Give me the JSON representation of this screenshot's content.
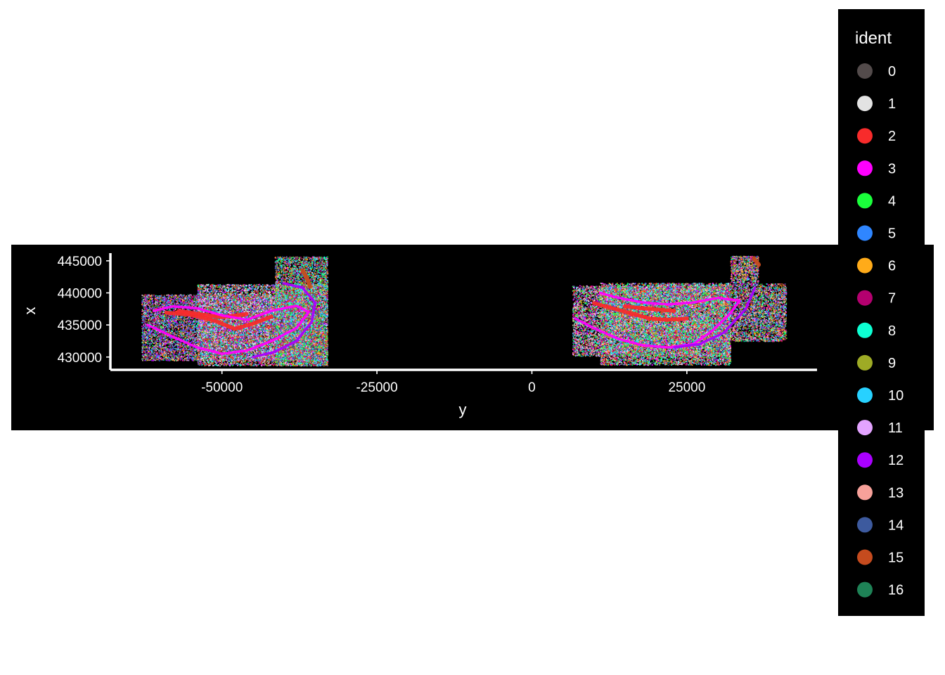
{
  "chart_data": {
    "type": "scatter",
    "title": "",
    "xlabel": "y",
    "ylabel": "x",
    "x_ticks": [
      -50000,
      -25000,
      0,
      25000
    ],
    "y_ticks": [
      430000,
      435000,
      440000,
      445000
    ],
    "x_tick_labels": [
      "-50000",
      "-25000",
      "0",
      "25000"
    ],
    "y_tick_labels": [
      "430000",
      "435000",
      "440000",
      "445000"
    ],
    "xlim": [
      -68000,
      46000
    ],
    "ylim": [
      428000,
      446200
    ],
    "grid": false,
    "background": "#000000",
    "foreground": "#ffffff",
    "legend": {
      "title": "ident",
      "position": "right",
      "entries": [
        {
          "label": "0",
          "color": "#534B4B"
        },
        {
          "label": "1",
          "color": "#E3E3E3"
        },
        {
          "label": "2",
          "color": "#F82B2B"
        },
        {
          "label": "3",
          "color": "#FF00FF"
        },
        {
          "label": "4",
          "color": "#1AFF3B"
        },
        {
          "label": "5",
          "color": "#2F86FF"
        },
        {
          "label": "6",
          "color": "#FFAB19"
        },
        {
          "label": "7",
          "color": "#B4006F"
        },
        {
          "label": "8",
          "color": "#0DFFD3"
        },
        {
          "label": "9",
          "color": "#9EAB25"
        },
        {
          "label": "10",
          "color": "#27D1FF"
        },
        {
          "label": "11",
          "color": "#E3A3FF"
        },
        {
          "label": "12",
          "color": "#AA00FF"
        },
        {
          "label": "13",
          "color": "#F7A19A"
        },
        {
          "label": "14",
          "color": "#3D5A9E"
        },
        {
          "label": "15",
          "color": "#C54B1E"
        },
        {
          "label": "16",
          "color": "#1E8256"
        }
      ]
    },
    "tissue_sections": [
      {
        "regions": [
          {
            "y": [
              -63000,
              -36000
            ],
            "x": [
              429500,
              439800
            ]
          },
          {
            "y": [
              -54000,
              -33000
            ],
            "x": [
              428700,
              441400
            ]
          },
          {
            "y": [
              -41500,
              -33000
            ],
            "x": [
              428700,
              445700
            ]
          }
        ],
        "bands": [
          {
            "cluster": "2",
            "points": [
              [
                -59000,
                436900
              ],
              [
                -55000,
                436600
              ],
              [
                -51000,
                435600
              ],
              [
                -48000,
                434400
              ],
              [
                -45000,
                435200
              ],
              [
                -42000,
                436300
              ]
            ]
          },
          {
            "cluster": "2",
            "points": [
              [
                -57000,
                437200
              ],
              [
                -53000,
                436600
              ],
              [
                -50000,
                436200
              ],
              [
                -46000,
                436700
              ]
            ]
          },
          {
            "cluster": "3",
            "points": [
              [
                -62000,
                435000
              ],
              [
                -58000,
                433200
              ],
              [
                -54000,
                431500
              ],
              [
                -50000,
                430500
              ],
              [
                -46000,
                431000
              ],
              [
                -42000,
                432500
              ],
              [
                -38000,
                434500
              ],
              [
                -36000,
                437000
              ],
              [
                -38000,
                438000
              ],
              [
                -42000,
                437200
              ],
              [
                -46000,
                435800
              ],
              [
                -50000,
                436500
              ],
              [
                -54000,
                437600
              ],
              [
                -58000,
                437900
              ],
              [
                -61000,
                437200
              ]
            ]
          },
          {
            "cluster": "12",
            "points": [
              [
                -40000,
                441500
              ],
              [
                -37000,
                440800
              ],
              [
                -35000,
                438500
              ],
              [
                -35500,
                435500
              ],
              [
                -38000,
                432500
              ],
              [
                -41500,
                430800
              ],
              [
                -45000,
                430000
              ]
            ]
          },
          {
            "cluster": "15",
            "points": [
              [
                -37000,
                443500
              ],
              [
                -36300,
                442300
              ],
              [
                -35800,
                441000
              ]
            ]
          }
        ]
      },
      {
        "regions": [
          {
            "y": [
              6500,
              32000
            ],
            "x": [
              430200,
              441200
            ]
          },
          {
            "y": [
              11000,
              32000
            ],
            "x": [
              428800,
              441600
            ]
          },
          {
            "y": [
              32000,
              41000
            ],
            "x": [
              432500,
              441500
            ]
          },
          {
            "y": [
              32000,
              36500
            ],
            "x": [
              441500,
              445800
            ]
          }
        ],
        "bands": [
          {
            "cluster": "2",
            "points": [
              [
                10000,
                438400
              ],
              [
                13000,
                437600
              ],
              [
                16000,
                436800
              ],
              [
                19000,
                436000
              ],
              [
                22000,
                435800
              ],
              [
                25000,
                436000
              ]
            ]
          },
          {
            "cluster": "2",
            "points": [
              [
                15000,
                437900
              ],
              [
                19000,
                437500
              ],
              [
                23000,
                437200
              ]
            ]
          },
          {
            "cluster": "3",
            "points": [
              [
                7000,
                436000
              ],
              [
                10000,
                434500
              ],
              [
                14000,
                432800
              ],
              [
                18000,
                431800
              ],
              [
                22000,
                431500
              ],
              [
                26000,
                432000
              ],
              [
                29000,
                434000
              ],
              [
                32000,
                436800
              ],
              [
                33500,
                438800
              ],
              [
                30000,
                439200
              ],
              [
                26000,
                438500
              ],
              [
                22000,
                438200
              ],
              [
                18000,
                438500
              ],
              [
                14000,
                439200
              ],
              [
                11000,
                440000
              ]
            ]
          },
          {
            "cluster": "12",
            "points": [
              [
                36000,
                440800
              ],
              [
                34500,
                437500
              ],
              [
                31000,
                433800
              ],
              [
                27000,
                432000
              ],
              [
                23000,
                431500
              ]
            ]
          },
          {
            "cluster": "15",
            "points": [
              [
                35800,
                445400
              ],
              [
                36600,
                444400
              ]
            ]
          }
        ]
      }
    ]
  }
}
